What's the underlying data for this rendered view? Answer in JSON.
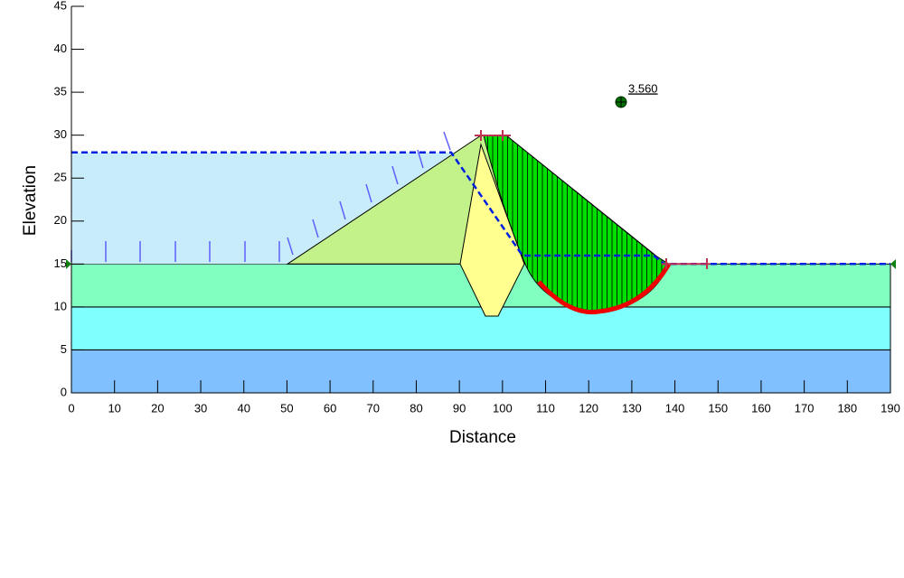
{
  "chart_data": {
    "type": "slope",
    "xlabel": "Distance",
    "ylabel": "Elevation",
    "xlim": [
      0,
      190
    ],
    "ylim": [
      0,
      45
    ],
    "xticks": [
      0,
      10,
      20,
      30,
      40,
      50,
      60,
      70,
      80,
      90,
      100,
      110,
      120,
      130,
      140,
      150,
      160,
      170,
      180,
      190
    ],
    "yticks": [
      0,
      5,
      10,
      15,
      20,
      25,
      30,
      35,
      40,
      45
    ],
    "annotation": "3.560"
  }
}
